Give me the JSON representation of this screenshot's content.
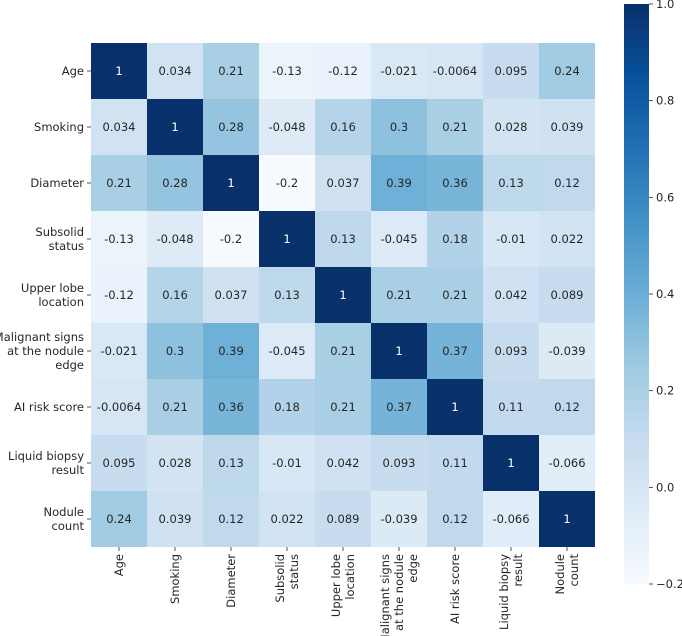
{
  "chart_data": {
    "type": "heatmap",
    "title": "",
    "xlabel": "",
    "ylabel": "",
    "row_labels": [
      [
        "Age"
      ],
      [
        "Smoking"
      ],
      [
        "Diameter"
      ],
      [
        "Subsolid",
        "status"
      ],
      [
        "Upper lobe",
        "location"
      ],
      [
        "Malignant signs",
        "at the nodule",
        "edge"
      ],
      [
        "AI risk score"
      ],
      [
        "Liquid biopsy",
        "result"
      ],
      [
        "Nodule",
        "count"
      ]
    ],
    "col_labels": [
      [
        "Age"
      ],
      [
        "Smoking"
      ],
      [
        "Diameter"
      ],
      [
        "Subsolid",
        "status"
      ],
      [
        "Upper lobe",
        "location"
      ],
      [
        "Malignant signs",
        "at the nodule",
        "edge"
      ],
      [
        "AI risk score"
      ],
      [
        "Liquid biopsy",
        "result"
      ],
      [
        "Nodule",
        "count"
      ]
    ],
    "values": [
      [
        1,
        0.034,
        0.21,
        -0.13,
        -0.12,
        -0.021,
        -0.0064,
        0.095,
        0.24
      ],
      [
        0.034,
        1,
        0.28,
        -0.048,
        0.16,
        0.3,
        0.21,
        0.028,
        0.039
      ],
      [
        0.21,
        0.28,
        1,
        -0.2,
        0.037,
        0.39,
        0.36,
        0.13,
        0.12
      ],
      [
        -0.13,
        -0.048,
        -0.2,
        1,
        0.13,
        -0.045,
        0.18,
        -0.01,
        0.022
      ],
      [
        -0.12,
        0.16,
        0.037,
        0.13,
        1,
        0.21,
        0.21,
        0.042,
        0.089
      ],
      [
        -0.021,
        0.3,
        0.39,
        -0.045,
        0.21,
        1,
        0.37,
        0.093,
        -0.039
      ],
      [
        -0.0064,
        0.21,
        0.36,
        0.18,
        0.21,
        0.37,
        1,
        0.11,
        0.12
      ],
      [
        0.095,
        0.028,
        0.13,
        -0.01,
        0.042,
        0.093,
        0.11,
        1,
        -0.066
      ],
      [
        0.24,
        0.039,
        0.12,
        0.022,
        0.089,
        -0.039,
        0.12,
        -0.066,
        1
      ]
    ],
    "value_labels": [
      [
        "1",
        "0.034",
        "0.21",
        "-0.13",
        "-0.12",
        "-0.021",
        "-0.0064",
        "0.095",
        "0.24"
      ],
      [
        "0.034",
        "1",
        "0.28",
        "-0.048",
        "0.16",
        "0.3",
        "0.21",
        "0.028",
        "0.039"
      ],
      [
        "0.21",
        "0.28",
        "1",
        "-0.2",
        "0.037",
        "0.39",
        "0.36",
        "0.13",
        "0.12"
      ],
      [
        "-0.13",
        "-0.048",
        "-0.2",
        "1",
        "0.13",
        "-0.045",
        "0.18",
        "-0.01",
        "0.022"
      ],
      [
        "-0.12",
        "0.16",
        "0.037",
        "0.13",
        "1",
        "0.21",
        "0.21",
        "0.042",
        "0.089"
      ],
      [
        "-0.021",
        "0.3",
        "0.39",
        "-0.045",
        "0.21",
        "1",
        "0.37",
        "0.093",
        "-0.039"
      ],
      [
        "-0.0064",
        "0.21",
        "0.36",
        "0.18",
        "0.21",
        "0.37",
        "1",
        "0.11",
        "0.12"
      ],
      [
        "0.095",
        "0.028",
        "0.13",
        "-0.01",
        "0.042",
        "0.093",
        "0.11",
        "1",
        "-0.066"
      ],
      [
        "0.24",
        "0.039",
        "0.12",
        "0.022",
        "0.089",
        "-0.039",
        "0.12",
        "-0.066",
        "1"
      ]
    ],
    "colorbar": {
      "vmin": -0.2,
      "vmax": 1.0,
      "ticks": [
        1.0,
        0.8,
        0.6,
        0.4,
        0.2,
        0.0,
        -0.2
      ],
      "tick_labels": [
        "1.0",
        "0.8",
        "0.6",
        "0.4",
        "0.2",
        "0.0",
        "−0.2"
      ]
    },
    "colormap": "Blues",
    "colormap_stops": [
      "#f7fbff",
      "#deebf7",
      "#c6dbef",
      "#9ecae1",
      "#6baed6",
      "#4292c6",
      "#2171b5",
      "#08519c",
      "#08306b"
    ]
  }
}
